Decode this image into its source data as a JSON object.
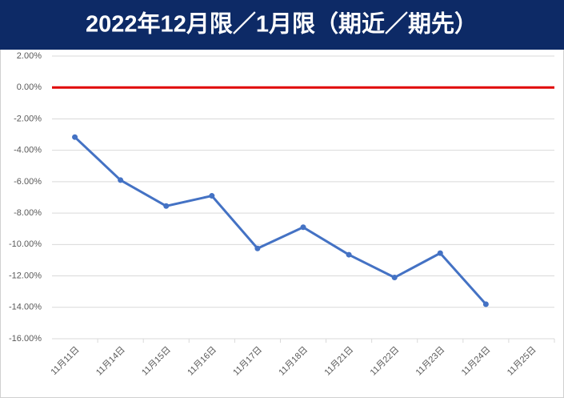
{
  "chart_data": {
    "type": "line",
    "title": "2022年12月限／1月限（期近／期先）",
    "categories": [
      "11月11日",
      "11月14日",
      "11月15日",
      "11月16日",
      "11月17日",
      "11月18日",
      "11月21日",
      "11月22日",
      "11月23日",
      "11月24日",
      "11月25日"
    ],
    "series": [
      {
        "color": "#4472c4",
        "values": [
          -3.16,
          -5.9,
          -7.55,
          -6.9,
          -10.25,
          -8.9,
          -10.65,
          -12.1,
          -10.55,
          -13.8,
          null
        ]
      }
    ],
    "hline": 0,
    "hline_color": "#e00000",
    "ylim": [
      -16,
      2
    ],
    "yticks": [
      {
        "value": 2,
        "label": "2.00%"
      },
      {
        "value": 0,
        "label": "0.00%"
      },
      {
        "value": -2,
        "label": "-2.00%"
      },
      {
        "value": -4,
        "label": "-4.00%"
      },
      {
        "value": -6,
        "label": "-6.00%"
      },
      {
        "value": -8,
        "label": "-8.00%"
      },
      {
        "value": -10,
        "label": "-10.00%"
      },
      {
        "value": -12,
        "label": "-12.00%"
      },
      {
        "value": -14,
        "label": "-14.00%"
      },
      {
        "value": -16,
        "label": "-16.00%"
      }
    ],
    "grid": true
  }
}
